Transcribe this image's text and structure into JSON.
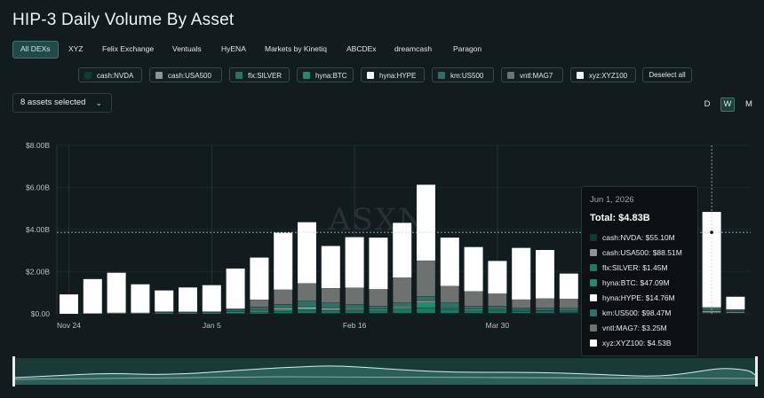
{
  "title": "HIP-3 Daily Volume By Asset",
  "dex_tabs": [
    "All DEXs",
    "XYZ",
    "Felix Exchange",
    "Ventuals",
    "HyENA",
    "Markets by Kinetiq",
    "ABCDEx",
    "dreamcash",
    "Paragon"
  ],
  "active_tab": "All DEXs",
  "assets": [
    {
      "label": "cash:NVDA",
      "color": "#0d3d30"
    },
    {
      "label": "cash:USA500",
      "color": "#8e9393"
    },
    {
      "label": "flx:SILVER",
      "color": "#1c7a62"
    },
    {
      "label": "hyna:BTC",
      "color": "#1f8c6e"
    },
    {
      "label": "hyna:HYPE",
      "color": "#ffffff"
    },
    {
      "label": "km:US500",
      "color": "#2f6f66"
    },
    {
      "label": "vntl:MAG7",
      "color": "#6d7271"
    },
    {
      "label": "xyz:XYZ100",
      "color": "#ffffff"
    }
  ],
  "deselect_label": "Deselect all",
  "selector_label": "8 assets selected",
  "selector_chevron": "chevron-down-icon",
  "periods": [
    "D",
    "W",
    "M"
  ],
  "active_period": "W",
  "watermark": "ASXN",
  "tooltip": {
    "date": "Jun 1, 2026",
    "total": "Total: $4.83B",
    "rows": [
      {
        "label": "cash:NVDA: $55.10M",
        "color": "#0d3d30"
      },
      {
        "label": "cash:USA500: $88.51M",
        "color": "#8e9393"
      },
      {
        "label": "flx:SILVER: $1.45M",
        "color": "#1c7a62"
      },
      {
        "label": "hyna:BTC: $47.09M",
        "color": "#1f8c6e"
      },
      {
        "label": "hyna:HYPE: $14.76M",
        "color": "#ffffff"
      },
      {
        "label": "km:US500: $98.47M",
        "color": "#2f6f66"
      },
      {
        "label": "vntl:MAG7: $3.25M",
        "color": "#6d7271"
      },
      {
        "label": "xyz:XYZ100: $4.53B",
        "color": "#ffffff"
      }
    ]
  },
  "chart_data": {
    "type": "bar",
    "stacked": true,
    "title": "HIP-3 Daily Volume By Asset",
    "y_ticks": [
      "$0.00",
      "$2.00B",
      "$4.00B",
      "$6.00B",
      "$8.00B"
    ],
    "ylim": [
      0,
      8.0
    ],
    "y_unit": "billions USD",
    "x_tick_labels": [
      {
        "label": "Nov 24",
        "index": 0
      },
      {
        "label": "Jan 5",
        "index": 6
      },
      {
        "label": "Feb 16",
        "index": 12
      },
      {
        "label": "Mar 30",
        "index": 18
      }
    ],
    "grid": "vertical lines at x ticks, faint horizontal at y ticks",
    "crosshair_y": 3.87,
    "highlight_index": 27,
    "series": [
      {
        "name": "cash:NVDA",
        "color": "#0d3d30",
        "values": [
          0,
          0,
          0,
          0,
          0,
          0,
          0,
          0,
          0,
          0.02,
          0.03,
          0.02,
          0.03,
          0.03,
          0.03,
          0.03,
          0.03,
          0.03,
          0.03,
          0.03,
          0.03,
          0.03,
          0.03,
          0.04,
          0.04,
          0.04,
          0.04,
          0.055,
          0.04
        ]
      },
      {
        "name": "cash:USA500",
        "color": "#8e9393",
        "values": [
          0,
          0,
          0,
          0,
          0,
          0,
          0,
          0,
          0,
          0,
          0,
          0,
          0,
          0,
          0,
          0,
          0,
          0,
          0,
          0,
          0,
          0,
          0,
          0,
          0,
          0,
          0,
          0.09,
          0.05
        ]
      },
      {
        "name": "flx:SILVER",
        "color": "#1c7a62",
        "values": [
          0,
          0,
          0,
          0,
          0,
          0,
          0,
          0.02,
          0.05,
          0.1,
          0.12,
          0.12,
          0.1,
          0.1,
          0.15,
          0.25,
          0.15,
          0.1,
          0.1,
          0.08,
          0.06,
          0.04,
          0.04,
          0.03,
          0.02,
          0.02,
          0.02,
          0.0015,
          0.01
        ]
      },
      {
        "name": "hyna:BTC",
        "color": "#1f8c6e",
        "values": [
          0,
          0.02,
          0.05,
          0.05,
          0.06,
          0.05,
          0.06,
          0.08,
          0.1,
          0.08,
          0.1,
          0.08,
          0.08,
          0.06,
          0.1,
          0.25,
          0.06,
          0.06,
          0.06,
          0.05,
          0.05,
          0.05,
          0.05,
          0.05,
          0.05,
          0.05,
          0.05,
          0.047,
          0.03
        ]
      },
      {
        "name": "hyna:HYPE",
        "color": "#ffffff",
        "values": [
          0,
          0,
          0,
          0,
          0,
          0,
          0,
          0,
          0.02,
          0.05,
          0.05,
          0.05,
          0.03,
          0.03,
          0.04,
          0.05,
          0.03,
          0.03,
          0.02,
          0.02,
          0.02,
          0.02,
          0.02,
          0.02,
          0.02,
          0.02,
          0.02,
          0.015,
          0.01
        ]
      },
      {
        "name": "km:US500",
        "color": "#2f6f66",
        "values": [
          0,
          0,
          0,
          0,
          0.05,
          0.05,
          0.05,
          0.1,
          0.15,
          0.2,
          0.3,
          0.25,
          0.2,
          0.15,
          0.2,
          0.25,
          0.25,
          0.15,
          0.15,
          0.1,
          0.12,
          0.12,
          0.1,
          0.1,
          0.1,
          0.1,
          0.1,
          0.098,
          0.05
        ]
      },
      {
        "name": "vntl:MAG7",
        "color": "#6d7271",
        "values": [
          0,
          0,
          0,
          0,
          0,
          0,
          0,
          0.05,
          0.35,
          0.7,
          0.85,
          0.7,
          0.8,
          0.8,
          1.2,
          1.7,
          0.8,
          0.7,
          0.6,
          0.4,
          0.45,
          0.45,
          0.2,
          0.15,
          0.1,
          0.1,
          0.05,
          0.003,
          0.02
        ]
      },
      {
        "name": "xyz:XYZ100",
        "color": "#ffffff",
        "values": [
          0.92,
          1.63,
          1.9,
          1.35,
          1.0,
          1.15,
          1.25,
          1.9,
          2.0,
          2.7,
          2.9,
          2.0,
          2.4,
          2.45,
          2.6,
          3.6,
          2.3,
          2.1,
          1.55,
          2.45,
          2.3,
          1.2,
          1.4,
          1.7,
          1.3,
          1.5,
          0.6,
          4.53,
          0.6
        ]
      }
    ]
  }
}
